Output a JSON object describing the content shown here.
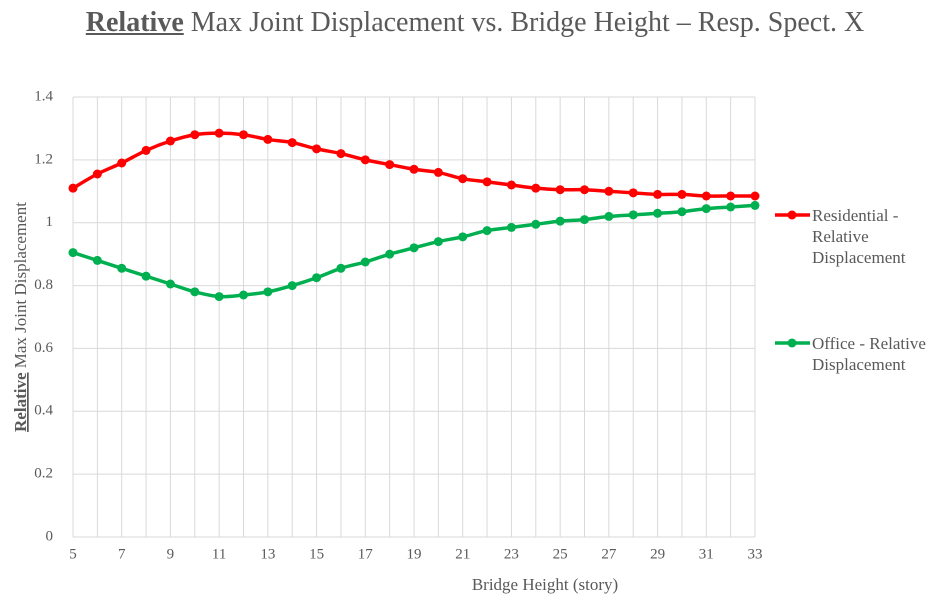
{
  "chart_data": {
    "type": "line",
    "title": [
      {
        "text": "Relative",
        "bold": true,
        "underline": true
      },
      {
        "text": " Max Joint Displacement vs. Bridge Height – Resp. Spect. X"
      }
    ],
    "x_label": "Bridge Height (story)",
    "y_label": [
      {
        "text": "Relative",
        "bold": true,
        "underline": true
      },
      {
        "text": " Max Joint Displacement"
      }
    ],
    "categories": [
      5,
      null,
      7,
      null,
      9,
      null,
      11,
      null,
      13,
      null,
      15,
      null,
      17,
      null,
      19,
      null,
      21,
      null,
      23,
      null,
      25,
      null,
      27,
      null,
      29,
      null,
      31,
      null,
      33
    ],
    "ylim": [
      0,
      1.4
    ],
    "yticks": [
      0,
      0.2,
      0.4,
      0.6,
      0.8,
      1,
      1.2,
      1.4
    ],
    "grid": true,
    "smooth": true,
    "legend": "right",
    "series": [
      {
        "name": "Residential - Relative Displacement",
        "color": "#ff0000",
        "values": [
          1.11,
          1.155,
          1.19,
          1.23,
          1.26,
          1.28,
          1.285,
          1.28,
          1.265,
          1.255,
          1.235,
          1.22,
          1.2,
          1.185,
          1.17,
          1.16,
          1.14,
          1.13,
          1.12,
          1.11,
          1.105,
          1.105,
          1.1,
          1.095,
          1.09,
          1.09,
          1.085,
          1.085,
          1.085
        ]
      },
      {
        "name": "Office - Relative Displacement",
        "color": "#00b050",
        "values": [
          0.905,
          0.88,
          0.855,
          0.83,
          0.805,
          0.78,
          0.765,
          0.77,
          0.78,
          0.8,
          0.825,
          0.855,
          0.875,
          0.9,
          0.92,
          0.94,
          0.955,
          0.975,
          0.985,
          0.995,
          1.005,
          1.01,
          1.02,
          1.025,
          1.03,
          1.035,
          1.045,
          1.05,
          1.055
        ]
      }
    ]
  }
}
